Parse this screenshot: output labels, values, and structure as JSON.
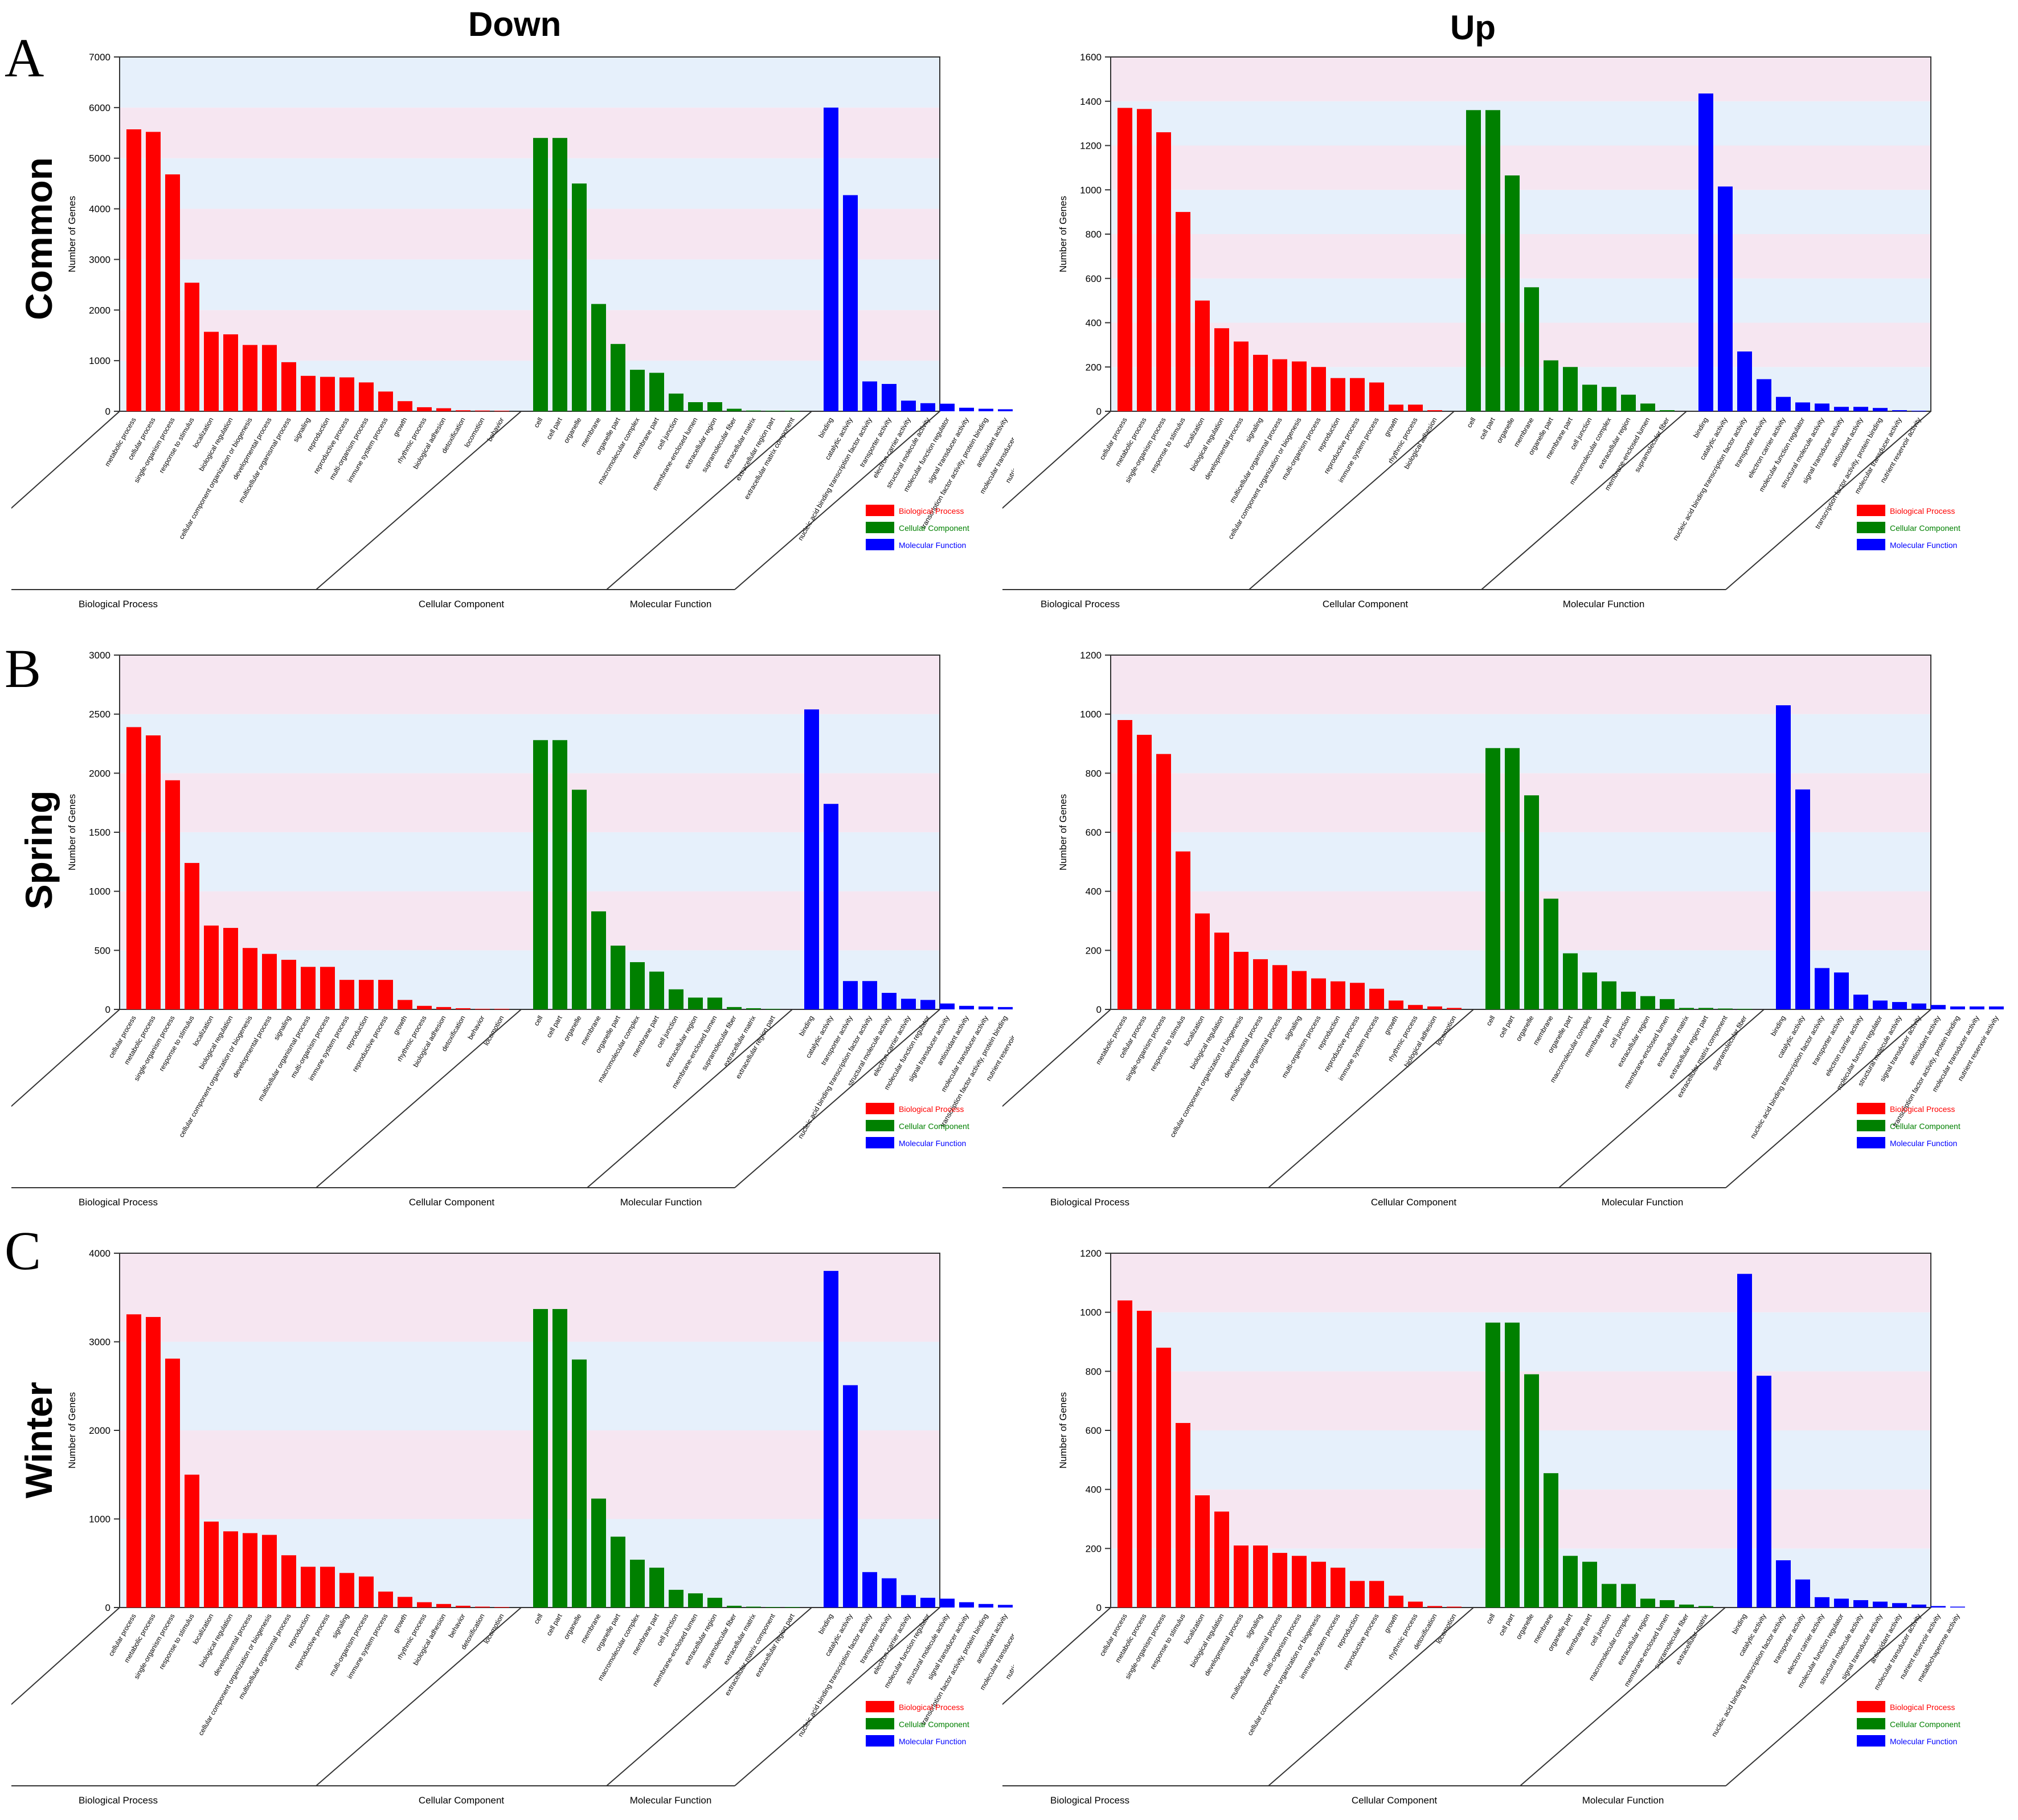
{
  "columns": [
    {
      "key": "down",
      "title": "Down"
    },
    {
      "key": "up",
      "title": "Up"
    }
  ],
  "rows": [
    {
      "key": "common",
      "letter": "A",
      "title": "Common"
    },
    {
      "key": "spring",
      "letter": "B",
      "title": "Spring"
    },
    {
      "key": "winter",
      "letter": "C",
      "title": "Winter"
    }
  ],
  "colors": {
    "Biological Process": "#ff0000",
    "Cellular Component": "#008000",
    "Molecular Function": "#0000ff",
    "band_blue": "#e6f0fb",
    "band_pink": "#f6e6f1"
  },
  "chart_data": [
    {
      "id": "common-down",
      "type": "bar",
      "row": "common",
      "column": "down",
      "ylabel": "Number of Genes",
      "ylim": [
        0,
        7000
      ],
      "yticks": [
        0,
        1000,
        2000,
        3000,
        4000,
        5000,
        6000,
        7000
      ],
      "legend": [
        "Biological Process",
        "Cellular Component",
        "Molecular Function"
      ],
      "groups": [
        {
          "name": "Biological Process",
          "categories": [
            "metabolic process",
            "cellular process",
            "single-organism process",
            "response to stimulus",
            "localization",
            "biological regulation",
            "cellular component organization or biogenesis",
            "developmental process",
            "multicellular organismal process",
            "signaling",
            "reproduction",
            "reproductive process",
            "multi-organism process",
            "immune system process",
            "growth",
            "rhythmic process",
            "biological adhesion",
            "detoxification",
            "locomotion",
            "behavior"
          ],
          "values": [
            5570,
            5520,
            4680,
            2540,
            1570,
            1520,
            1310,
            1310,
            970,
            700,
            680,
            670,
            570,
            390,
            200,
            80,
            60,
            20,
            15,
            10
          ]
        },
        {
          "name": "Cellular Component",
          "categories": [
            "cell",
            "cell part",
            "organelle",
            "membrane",
            "organelle part",
            "macromolecular complex",
            "membrane part",
            "cell junction",
            "membrane-enclosed lumen",
            "extracellular region",
            "supramolecular fiber",
            "extracellular matrix",
            "extracellular region part",
            "extracellular matrix component"
          ],
          "values": [
            5400,
            5400,
            4500,
            2120,
            1330,
            820,
            760,
            350,
            180,
            180,
            50,
            15,
            10,
            5
          ]
        },
        {
          "name": "Molecular Function",
          "categories": [
            "binding",
            "catalytic activity",
            "nucleic acid binding transcription factor activity",
            "transporter activity",
            "electron carrier activity",
            "structural molecule activity",
            "molecular function regulator",
            "signal transducer activity",
            "transcription factor activity, protein binding",
            "antioxidant activity",
            "molecular transducer activity",
            "nutrient reservoir activity",
            "metallochaperone activity"
          ],
          "values": [
            6000,
            4270,
            590,
            540,
            210,
            160,
            150,
            70,
            50,
            40,
            30,
            20,
            10
          ]
        }
      ]
    },
    {
      "id": "common-up",
      "type": "bar",
      "row": "common",
      "column": "up",
      "ylabel": "Number of Genes",
      "ylim": [
        0,
        1600
      ],
      "yticks": [
        0,
        200,
        400,
        600,
        800,
        1000,
        1200,
        1400,
        1600
      ],
      "legend": [
        "Biological Process",
        "Cellular Component",
        "Molecular Function"
      ],
      "groups": [
        {
          "name": "Biological Process",
          "categories": [
            "cellular process",
            "metabolic process",
            "single-organism process",
            "response to stimulus",
            "localization",
            "biological regulation",
            "developmental process",
            "signaling",
            "multicellular organismal process",
            "cellular component organization or biogenesis",
            "multi-organism process",
            "reproduction",
            "reproductive process",
            "immune system process",
            "growth",
            "rhythmic process",
            "biological adhesion"
          ],
          "values": [
            1370,
            1365,
            1260,
            900,
            500,
            375,
            315,
            255,
            235,
            225,
            200,
            150,
            150,
            130,
            30,
            30,
            5
          ]
        },
        {
          "name": "Cellular Component",
          "categories": [
            "cell",
            "cell part",
            "organelle",
            "membrane",
            "organelle part",
            "membrane part",
            "cell junction",
            "macromolecular complex",
            "extracellular region",
            "membrane-enclosed lumen",
            "supramolecular fiber"
          ],
          "values": [
            1360,
            1360,
            1065,
            560,
            230,
            200,
            120,
            110,
            75,
            35,
            5
          ]
        },
        {
          "name": "Molecular Function",
          "categories": [
            "binding",
            "catalytic activity",
            "nucleic acid binding transcription factor activity",
            "transporter activity",
            "electron carrier activity",
            "molecular function regulator",
            "structural molecule activity",
            "signal transducer activity",
            "antioxidant activity",
            "transcription factor activity, protein binding",
            "molecular transducer activity",
            "nutrient reservoir activity"
          ],
          "values": [
            1435,
            1015,
            270,
            145,
            65,
            40,
            35,
            20,
            20,
            15,
            5,
            2
          ]
        }
      ]
    },
    {
      "id": "spring-down",
      "type": "bar",
      "row": "spring",
      "column": "down",
      "ylabel": "Number of Genes",
      "ylim": [
        0,
        3000
      ],
      "yticks": [
        0,
        500,
        1000,
        1500,
        2000,
        2500,
        3000
      ],
      "legend": [
        "Biological Process",
        "Cellular Component",
        "Molecular Function"
      ],
      "groups": [
        {
          "name": "Biological Process",
          "categories": [
            "cellular process",
            "metabolic process",
            "single-organism process",
            "response to stimulus",
            "localization",
            "biological regulation",
            "cellular component organization or biogenesis",
            "developmental process",
            "signaling",
            "multicellular organismal process",
            "multi-organism process",
            "immune system process",
            "reproduction",
            "reproductive process",
            "growth",
            "rhythmic process",
            "biological adhesion",
            "detoxification",
            "behavior",
            "locomotion"
          ],
          "values": [
            2390,
            2320,
            1940,
            1240,
            710,
            690,
            520,
            470,
            420,
            360,
            360,
            250,
            250,
            250,
            80,
            30,
            20,
            10,
            5,
            5
          ]
        },
        {
          "name": "Cellular Component",
          "categories": [
            "cell",
            "cell part",
            "organelle",
            "membrane",
            "organelle part",
            "macromolecular complex",
            "membrane part",
            "cell junction",
            "extracellular region",
            "membrane-enclosed lumen",
            "supramolecular fiber",
            "extracellular matrix",
            "extracellular region part"
          ],
          "values": [
            2280,
            2280,
            1860,
            830,
            540,
            400,
            320,
            170,
            100,
            100,
            20,
            10,
            5
          ]
        },
        {
          "name": "Molecular Function",
          "categories": [
            "binding",
            "catalytic activity",
            "transporter activity",
            "nucleic acid binding transcription factor activity",
            "structural molecule activity",
            "electron carrier activity",
            "molecular function regulator",
            "signal transducer activity",
            "antioxidant activity",
            "molecular transducer activity",
            "transcription factor activity, protein binding",
            "nutrient reservoir activity"
          ],
          "values": [
            2540,
            1740,
            240,
            240,
            140,
            90,
            80,
            50,
            30,
            25,
            20,
            10
          ]
        }
      ]
    },
    {
      "id": "spring-up",
      "type": "bar",
      "row": "spring",
      "column": "up",
      "ylabel": "Number of Genes",
      "ylim": [
        0,
        1200
      ],
      "yticks": [
        0,
        200,
        400,
        600,
        800,
        1000,
        1200
      ],
      "legend": [
        "Biological Process",
        "Cellular Component",
        "Molecular Function"
      ],
      "groups": [
        {
          "name": "Biological Process",
          "categories": [
            "metabolic process",
            "cellular process",
            "single-organism process",
            "response to stimulus",
            "localization",
            "biological regulation",
            "cellular component organization or biogenesis",
            "developmental process",
            "multicellular organismal process",
            "signaling",
            "multi-organism process",
            "reproduction",
            "reproductive process",
            "immune system process",
            "growth",
            "rhythmic process",
            "biological adhesion",
            "locomotion"
          ],
          "values": [
            980,
            930,
            865,
            535,
            325,
            260,
            195,
            170,
            150,
            130,
            105,
            95,
            90,
            70,
            30,
            15,
            10,
            5
          ]
        },
        {
          "name": "Cellular Component",
          "categories": [
            "cell",
            "cell part",
            "organelle",
            "membrane",
            "organelle part",
            "macromolecular complex",
            "membrane part",
            "cell junction",
            "extracellular region",
            "membrane-enclosed lumen",
            "extracellular matrix",
            "extracellular region part",
            "extracellular matrix component",
            "supramolecular fiber"
          ],
          "values": [
            885,
            885,
            725,
            375,
            190,
            125,
            95,
            60,
            45,
            35,
            5,
            5,
            3,
            2
          ]
        },
        {
          "name": "Molecular Function",
          "categories": [
            "binding",
            "catalytic activity",
            "nucleic acid binding transcription factor activity",
            "transporter activity",
            "electron carrier activity",
            "molecular function regulator",
            "structural molecule activity",
            "signal transducer activity",
            "antioxidant activity",
            "transcription factor activity, protein binding",
            "molecular transducer activity",
            "nutrient reservoir activity"
          ],
          "values": [
            1030,
            745,
            140,
            125,
            50,
            30,
            25,
            20,
            15,
            10,
            10,
            10
          ]
        }
      ]
    },
    {
      "id": "winter-down",
      "type": "bar",
      "row": "winter",
      "column": "down",
      "ylabel": "Number of Genes",
      "ylim": [
        0,
        4000
      ],
      "yticks": [
        0,
        1000,
        2000,
        3000,
        4000
      ],
      "legend": [
        "Biological Process",
        "Cellular Component",
        "Molecular Function"
      ],
      "groups": [
        {
          "name": "Biological Process",
          "categories": [
            "cellular process",
            "metabolic process",
            "single-organism process",
            "response to stimulus",
            "localization",
            "biological regulation",
            "developmental process",
            "cellular component organization or biogenesis",
            "multicellular organismal process",
            "reproduction",
            "reproductive process",
            "signaling",
            "multi-organism process",
            "immune system process",
            "growth",
            "rhythmic process",
            "biological adhesion",
            "behavior",
            "detoxification",
            "locomotion"
          ],
          "values": [
            3310,
            3280,
            2810,
            1500,
            970,
            860,
            840,
            820,
            590,
            460,
            460,
            390,
            350,
            180,
            120,
            60,
            40,
            20,
            10,
            5
          ]
        },
        {
          "name": "Cellular Component",
          "categories": [
            "cell",
            "cell part",
            "organelle",
            "membrane",
            "organelle part",
            "macromolecular complex",
            "membrane part",
            "cell junction",
            "membrane-enclosed lumen",
            "extracellular region",
            "supramolecular fiber",
            "extracellular matrix",
            "extracellular matrix component",
            "extracellular region part"
          ],
          "values": [
            3370,
            3370,
            2800,
            1230,
            800,
            540,
            450,
            200,
            160,
            110,
            20,
            10,
            5,
            5
          ]
        },
        {
          "name": "Molecular Function",
          "categories": [
            "binding",
            "catalytic activity",
            "nucleic acid binding transcription factor activity",
            "transporter activity",
            "electron carrier activity",
            "molecular function regulator",
            "structural molecule activity",
            "signal transducer activity",
            "transcription factor activity, protein binding",
            "antioxidant activity",
            "molecular transducer activity",
            "nutrient reservoir activity",
            "translation regulator activity"
          ],
          "values": [
            3800,
            2510,
            400,
            330,
            140,
            110,
            100,
            60,
            40,
            30,
            25,
            20,
            5
          ]
        }
      ]
    },
    {
      "id": "winter-up",
      "type": "bar",
      "row": "winter",
      "column": "up",
      "ylabel": "Number of Genes",
      "ylim": [
        0,
        1200
      ],
      "yticks": [
        0,
        200,
        400,
        600,
        800,
        1000,
        1200
      ],
      "legend": [
        "Biological Process",
        "Cellular Component",
        "Molecular Function"
      ],
      "groups": [
        {
          "name": "Biological Process",
          "categories": [
            "cellular process",
            "metabolic process",
            "single-organism process",
            "response to stimulus",
            "localization",
            "biological regulation",
            "developmental process",
            "signaling",
            "multicellular organismal process",
            "multi-organism process",
            "cellular component organization or biogenesis",
            "immune system process",
            "reproduction",
            "reproductive process",
            "growth",
            "rhythmic process",
            "detoxification",
            "locomotion"
          ],
          "values": [
            1040,
            1005,
            880,
            625,
            380,
            325,
            210,
            210,
            185,
            175,
            155,
            135,
            90,
            90,
            40,
            20,
            5,
            3
          ]
        },
        {
          "name": "Cellular Component",
          "categories": [
            "cell",
            "cell part",
            "organelle",
            "membrane",
            "organelle part",
            "membrane part",
            "cell junction",
            "macromolecular complex",
            "extracellular region",
            "membrane-enclosed lumen",
            "supramolecular fiber",
            "extracellular matrix"
          ],
          "values": [
            965,
            965,
            790,
            455,
            175,
            155,
            80,
            80,
            30,
            25,
            10,
            5
          ]
        },
        {
          "name": "Molecular Function",
          "categories": [
            "binding",
            "catalytic activity",
            "nucleic acid binding transcription factor activity",
            "transporter activity",
            "electron carrier activity",
            "molecular function regulator",
            "structural molecule activity",
            "signal transducer activity",
            "antioxidant activity",
            "molecular transducer activity",
            "nutrient reservoir activity",
            "metallochaperone activity"
          ],
          "values": [
            1130,
            785,
            160,
            95,
            35,
            30,
            25,
            20,
            15,
            10,
            5,
            3
          ]
        }
      ]
    }
  ]
}
